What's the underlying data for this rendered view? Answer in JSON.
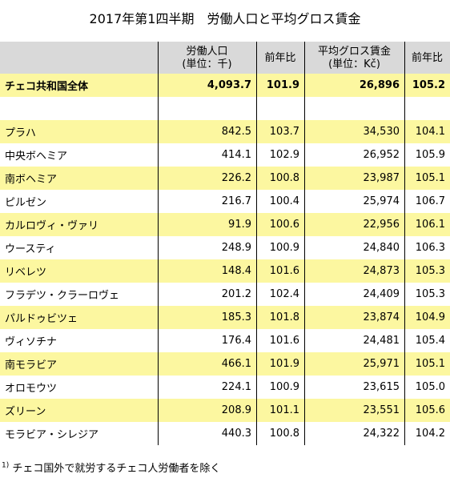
{
  "title": "2017年第1四半期　労働人口と平均グロス賃金",
  "table": {
    "header": [
      {
        "lines": []
      },
      {
        "lines": [
          "労働人口",
          "(単位：千)"
        ]
      },
      {
        "lines": [
          "前年比"
        ]
      },
      {
        "lines": [
          "平均グロス賃金",
          "(単位：Kč)"
        ]
      },
      {
        "lines": [
          "前年比"
        ]
      }
    ],
    "total": [
      "チェコ共和国全体",
      "4,093.7",
      "101.9",
      "26,896",
      "105.2"
    ],
    "rows": [
      [
        "プラハ",
        "842.5",
        "103.7",
        "34,530",
        "104.1"
      ],
      [
        "中央ボヘミア",
        "414.1",
        "102.9",
        "26,952",
        "105.9"
      ],
      [
        "南ボヘミア",
        "226.2",
        "100.8",
        "23,987",
        "105.1"
      ],
      [
        "ピルゼン",
        "216.7",
        "100.4",
        "25,974",
        "106.7"
      ],
      [
        "カルロヴィ・ヴァリ",
        "91.9",
        "100.6",
        "22,956",
        "106.1"
      ],
      [
        "ウースティ",
        "248.9",
        "100.9",
        "24,840",
        "106.3"
      ],
      [
        "リベレツ",
        "148.4",
        "101.6",
        "24,873",
        "105.3"
      ],
      [
        "フラデツ・クラーロヴェ",
        "201.2",
        "102.4",
        "24,409",
        "105.3"
      ],
      [
        "パルドゥビツェ",
        "185.3",
        "101.8",
        "23,874",
        "104.9"
      ],
      [
        "ヴィソチナ",
        "176.4",
        "101.6",
        "24,481",
        "105.4"
      ],
      [
        "南モラビア",
        "466.1",
        "101.9",
        "25,971",
        "105.1"
      ],
      [
        "オロモウツ",
        "224.1",
        "100.9",
        "23,615",
        "105.0"
      ],
      [
        "ズリーン",
        "208.9",
        "101.1",
        "23,551",
        "105.6"
      ],
      [
        "モラビア・シレジア",
        "440.3",
        "100.8",
        "24,322",
        "104.2"
      ]
    ]
  },
  "footnote": {
    "marker": "1)",
    "text": "チェコ国外で就労するチェコ人労働者を除く"
  }
}
